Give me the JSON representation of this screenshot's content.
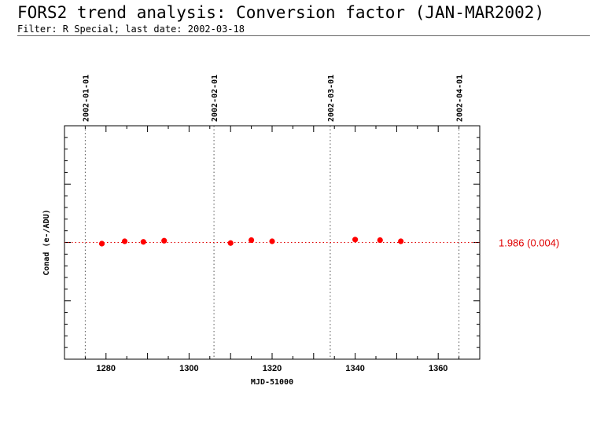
{
  "header": {
    "title": "FORS2 trend analysis: Conversion factor (JAN-MAR2002)",
    "subtitle": "Filter: R Special; last date: 2002-03-18"
  },
  "chart_data": {
    "type": "scatter",
    "title": "",
    "xlabel": "MJD-51000",
    "ylabel": "Conad (e-/ADU)",
    "xlim": [
      1270,
      1370
    ],
    "ylim": [
      1.966,
      2.006
    ],
    "x_ticks": [
      "1280",
      "1300",
      "1320",
      "1340",
      "1360"
    ],
    "date_markers": [
      {
        "label": "2002-01-01",
        "x": 1275
      },
      {
        "label": "2002-02-01",
        "x": 1306
      },
      {
        "label": "2002-03-01",
        "x": 1334
      },
      {
        "label": "2002-04-01",
        "x": 1365
      }
    ],
    "reference_line": {
      "value": 1.986,
      "label": "1.986 (0.004)",
      "color": "#e00000"
    },
    "series": [
      {
        "color": "#ff0000",
        "x": [
          1279,
          1284.5,
          1289,
          1294,
          1310,
          1315,
          1320,
          1340,
          1346,
          1351
        ],
        "y": [
          1.9858,
          1.9862,
          1.9861,
          1.9863,
          1.9859,
          1.9864,
          1.9862,
          1.9865,
          1.9864,
          1.9862
        ]
      }
    ],
    "grid": false
  }
}
